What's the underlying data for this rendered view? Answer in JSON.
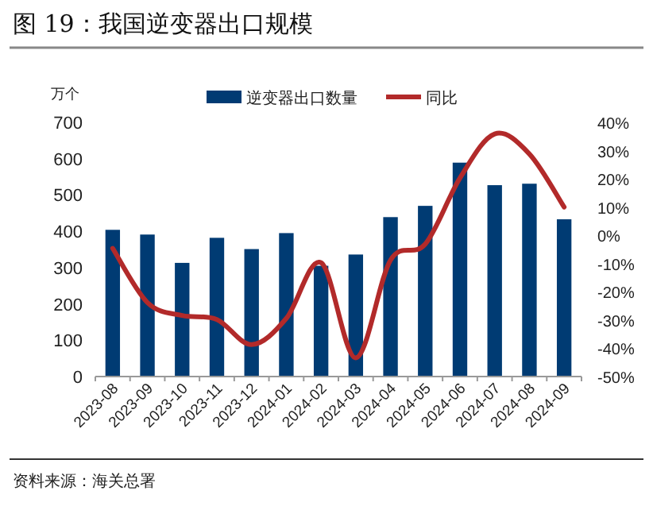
{
  "chart_data": {
    "type": "bar",
    "title": "图 19：我国逆变器出口规模",
    "ylabel": "万个",
    "categories": [
      "2023-08",
      "2023-09",
      "2023-10",
      "2023-11",
      "2023-12",
      "2024-01",
      "2024-02",
      "2024-03",
      "2024-04",
      "2024-05",
      "2024-06",
      "2024-07",
      "2024-08",
      "2024-09"
    ],
    "series": [
      {
        "name": "逆变器出口数量",
        "color": "#003b73",
        "values": [
          404,
          391,
          313,
          382,
          351,
          395,
          305,
          336,
          439,
          470,
          589,
          527,
          531,
          433
        ]
      },
      {
        "name": "同比",
        "type": "line",
        "axis": "y2",
        "color": "#b22a2a",
        "values": [
          -4.6,
          -23.8,
          -28.4,
          -29.8,
          -38.7,
          -29.4,
          -9.7,
          -43.4,
          -8.8,
          -3.1,
          20.3,
          35.9,
          28.8,
          10.0
        ]
      }
    ],
    "ylim": [
      0,
      700
    ],
    "yticks": [
      0,
      100,
      200,
      300,
      400,
      500,
      600,
      700
    ],
    "y2lim": [
      -50,
      40
    ],
    "y2ticks": [
      {
        "value": -50,
        "label": "-50%"
      },
      {
        "value": -40,
        "label": "-40%"
      },
      {
        "value": -30,
        "label": "-30%"
      },
      {
        "value": -20,
        "label": "-20%"
      },
      {
        "value": -10,
        "label": "-10%"
      },
      {
        "value": 0,
        "label": "0%"
      },
      {
        "value": 10,
        "label": "10%"
      },
      {
        "value": 20,
        "label": "20%"
      },
      {
        "value": 30,
        "label": "30%"
      },
      {
        "value": 40,
        "label": "40%"
      }
    ],
    "grid": false,
    "legend": "top",
    "marker": "none",
    "line_style": "solid",
    "annotations": [
      "资料来源：海关总署"
    ]
  }
}
